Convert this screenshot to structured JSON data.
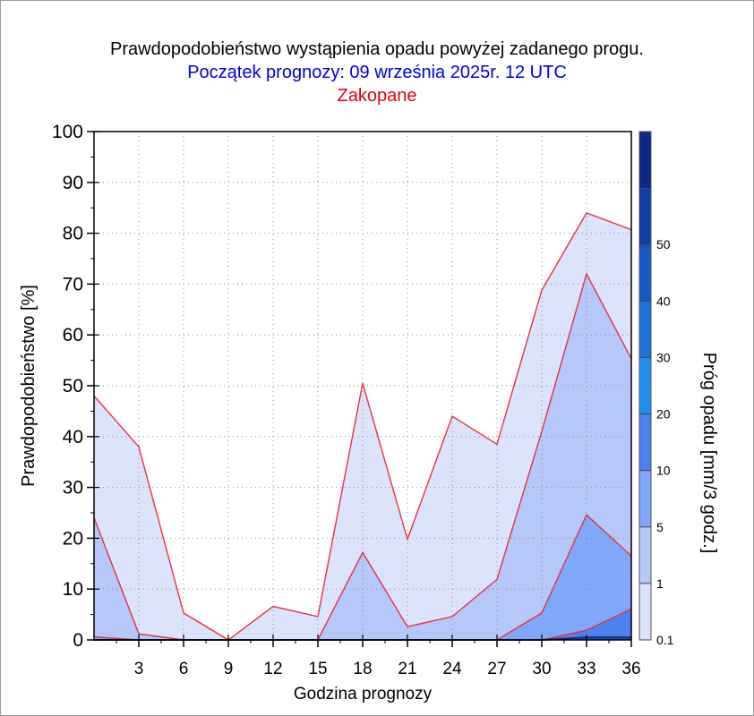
{
  "chart_data": {
    "type": "area",
    "title": "Prawdopodobieństwo wystąpienia opadu powyżej zadanego progu.",
    "subtitle": "Początek prognozy: 09 września 2025r. 12 UTC",
    "location": "Zakopane",
    "xlabel": "Godzina prognozy",
    "ylabel": "Prawdopodobieństwo [%]",
    "xlim": [
      0,
      36
    ],
    "ylim": [
      0,
      100
    ],
    "x": [
      0,
      3,
      6,
      9,
      12,
      15,
      18,
      21,
      24,
      27,
      30,
      33,
      36
    ],
    "x_ticks": [
      "3",
      "6",
      "9",
      "12",
      "15",
      "18",
      "21",
      "24",
      "27",
      "30",
      "33",
      "36"
    ],
    "y_ticks": [
      "0",
      "10",
      "20",
      "30",
      "40",
      "50",
      "60",
      "70",
      "80",
      "90",
      "100"
    ],
    "grid": true,
    "series": [
      {
        "threshold": 0.1,
        "color": "#dce3fd",
        "values": [
          48,
          38,
          5.3,
          0,
          6.6,
          4.6,
          50.5,
          19.8,
          44,
          38.5,
          68.8,
          84,
          80.7
        ]
      },
      {
        "threshold": 1,
        "color": "#b4c8fa",
        "values": [
          24,
          1.2,
          0,
          0,
          0,
          0,
          17.2,
          2.6,
          4.6,
          11.9,
          41,
          72,
          55.3
        ]
      },
      {
        "threshold": 5,
        "color": "#80a8fa",
        "values": [
          0.6,
          0,
          0,
          0,
          0,
          0,
          0,
          0,
          0,
          0,
          5.3,
          24.6,
          16.5
        ]
      },
      {
        "threshold": 10,
        "color": "#4a82ef",
        "values": [
          0,
          0,
          0,
          0,
          0,
          0,
          0,
          0,
          0,
          0,
          0,
          1.9,
          6.1
        ]
      },
      {
        "threshold": 20,
        "color": "#1e56c6",
        "values": [
          0,
          0,
          0,
          0,
          0,
          0,
          0,
          0,
          0,
          0,
          0,
          0.5,
          0.5
        ]
      }
    ],
    "line_color": "#e8303c",
    "colorbar": {
      "label": "Próg opadu [mm/3 godz.]",
      "tick_labels": [
        "0.1",
        "1",
        "5",
        "10",
        "20",
        "30",
        "40",
        "50"
      ],
      "colors": [
        "#dce3fd",
        "#b4c8fa",
        "#80a8fa",
        "#4a82ef",
        "#1e90f0",
        "#1a74e0",
        "#1458c8",
        "#0e3ea8",
        "#0a2a88"
      ]
    }
  }
}
